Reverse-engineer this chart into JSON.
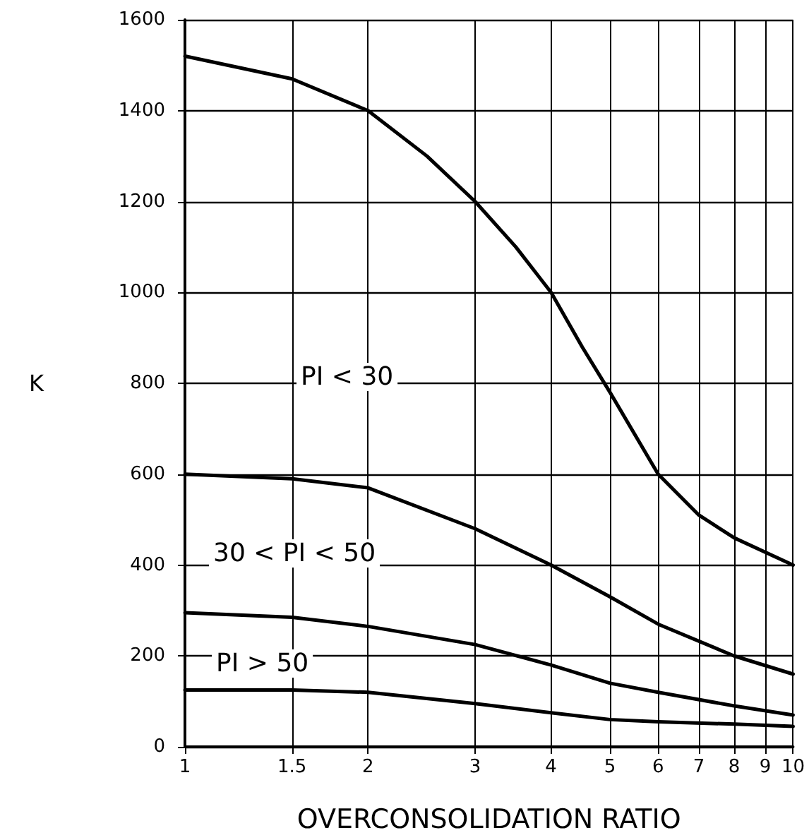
{
  "chart_data": {
    "type": "line",
    "xlabel": "OVERCONSOLIDATION RATIO",
    "ylabel": "K",
    "log": "x",
    "xlim": [
      1,
      10
    ],
    "xticks": [
      1,
      1.5,
      2,
      3,
      4,
      5,
      6,
      7,
      8,
      9,
      10
    ],
    "ylim": [
      0,
      1600
    ],
    "yticks": [
      0,
      200,
      400,
      600,
      800,
      1000,
      1200,
      1400,
      1600
    ],
    "grid": true,
    "marker": "none",
    "line_style": "solid",
    "series": [
      {
        "color": "#000000",
        "x": [
          1,
          1.5,
          2,
          2.5,
          3,
          3.5,
          4,
          4.5,
          5,
          6,
          7,
          8,
          10
        ],
        "values": [
          1520,
          1470,
          1400,
          1300,
          1200,
          1100,
          1000,
          880,
          780,
          600,
          510,
          460,
          400
        ]
      },
      {
        "color": "#000000",
        "x": [
          1,
          1.5,
          2,
          3,
          4,
          5,
          6,
          8,
          10
        ],
        "values": [
          600,
          590,
          570,
          480,
          400,
          330,
          270,
          200,
          160
        ]
      },
      {
        "color": "#000000",
        "x": [
          1,
          1.5,
          2,
          3,
          4,
          5,
          6,
          8,
          10
        ],
        "values": [
          295,
          285,
          265,
          225,
          180,
          140,
          120,
          90,
          70
        ]
      },
      {
        "color": "#000000",
        "x": [
          1,
          1.5,
          2,
          3,
          4,
          5,
          6,
          8,
          10
        ],
        "values": [
          125,
          125,
          120,
          95,
          75,
          60,
          55,
          50,
          45
        ]
      }
    ],
    "annotations": [
      "PI < 30",
      "30 < PI < 50",
      "PI > 50"
    ]
  }
}
